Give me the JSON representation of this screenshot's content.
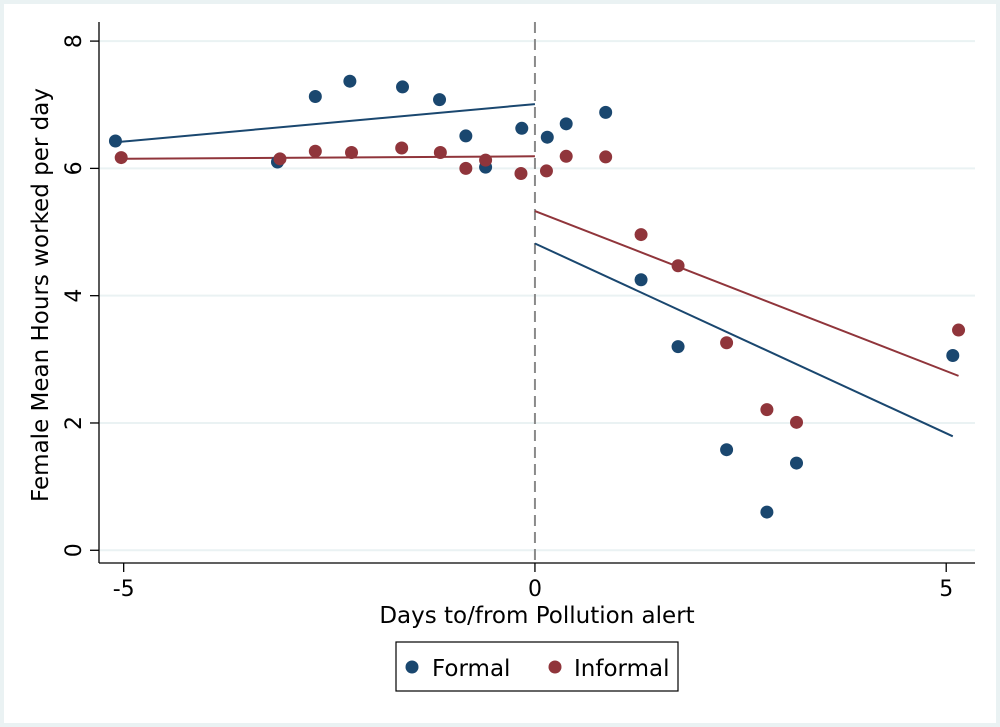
{
  "chart_data": {
    "type": "scatter",
    "xlabel": "Days to/from Pollution alert",
    "ylabel": "Female Mean Hours worked per day",
    "xlim": [
      -5.3,
      5.35
    ],
    "ylim": [
      -0.2,
      8.3
    ],
    "x_ticks": [
      -5,
      0,
      5
    ],
    "x_tick_labels": [
      "-5",
      "0",
      "5"
    ],
    "y_ticks": [
      0,
      2,
      4,
      6,
      8
    ],
    "y_tick_labels": [
      "0",
      "2",
      "4",
      "6",
      "8"
    ],
    "grid": "horizontal",
    "reference_line": {
      "x": 0,
      "style": "dashed"
    },
    "legend": {
      "position": "bottom",
      "entries": [
        "Formal",
        "Informal"
      ]
    },
    "colors": {
      "Formal": "#1a476f",
      "Informal": "#90353b",
      "grid": "#eaf2f3"
    },
    "series": [
      {
        "name": "Formal",
        "points": [
          {
            "x": -5.1,
            "y": 6.43
          },
          {
            "x": -3.13,
            "y": 6.1
          },
          {
            "x": -2.67,
            "y": 7.13
          },
          {
            "x": -2.25,
            "y": 7.37
          },
          {
            "x": -1.61,
            "y": 7.28
          },
          {
            "x": -1.16,
            "y": 7.08
          },
          {
            "x": -0.84,
            "y": 6.51
          },
          {
            "x": -0.6,
            "y": 6.02
          },
          {
            "x": -0.16,
            "y": 6.63
          },
          {
            "x": 0.15,
            "y": 6.49
          },
          {
            "x": 0.38,
            "y": 6.7
          },
          {
            "x": 0.86,
            "y": 6.88
          },
          {
            "x": 1.29,
            "y": 4.25
          },
          {
            "x": 1.74,
            "y": 3.2
          },
          {
            "x": 2.33,
            "y": 1.58
          },
          {
            "x": 2.82,
            "y": 0.6
          },
          {
            "x": 3.18,
            "y": 1.37
          },
          {
            "x": 5.08,
            "y": 3.06
          }
        ],
        "fit": [
          {
            "x1": -5.1,
            "y1": 6.41,
            "x2": 0,
            "y2": 7.01
          },
          {
            "x1": 0,
            "y1": 4.82,
            "x2": 5.08,
            "y2": 1.79
          }
        ]
      },
      {
        "name": "Informal",
        "points": [
          {
            "x": -5.03,
            "y": 6.17
          },
          {
            "x": -3.1,
            "y": 6.15
          },
          {
            "x": -2.67,
            "y": 6.27
          },
          {
            "x": -2.23,
            "y": 6.25
          },
          {
            "x": -1.62,
            "y": 6.32
          },
          {
            "x": -1.15,
            "y": 6.25
          },
          {
            "x": -0.84,
            "y": 6.0
          },
          {
            "x": -0.6,
            "y": 6.13
          },
          {
            "x": -0.17,
            "y": 5.92
          },
          {
            "x": 0.14,
            "y": 5.96
          },
          {
            "x": 0.38,
            "y": 6.19
          },
          {
            "x": 0.86,
            "y": 6.18
          },
          {
            "x": 1.29,
            "y": 4.96
          },
          {
            "x": 1.74,
            "y": 4.47
          },
          {
            "x": 2.33,
            "y": 3.26
          },
          {
            "x": 2.82,
            "y": 2.21
          },
          {
            "x": 3.18,
            "y": 2.01
          },
          {
            "x": 5.15,
            "y": 3.46
          }
        ],
        "fit": [
          {
            "x1": -5.03,
            "y1": 6.15,
            "x2": 0,
            "y2": 6.19
          },
          {
            "x1": 0,
            "y1": 5.33,
            "x2": 5.15,
            "y2": 2.74
          }
        ]
      }
    ]
  }
}
